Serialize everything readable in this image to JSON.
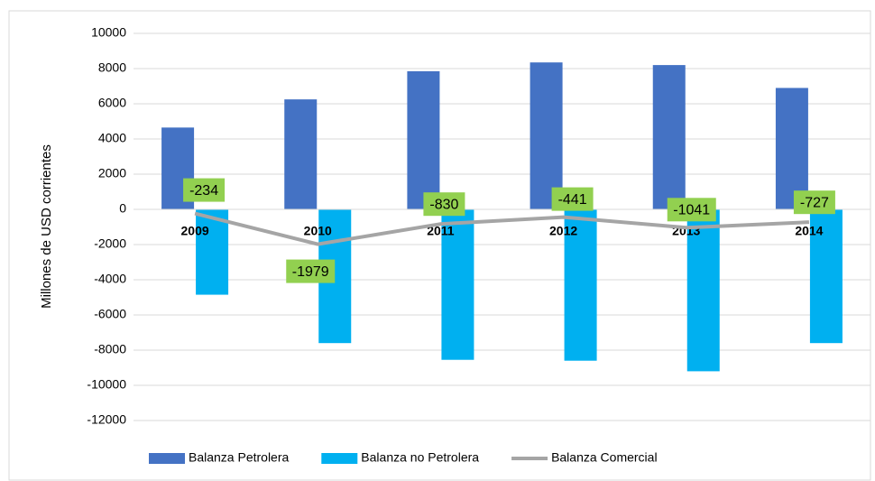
{
  "chart_data": {
    "type": "bar",
    "y_label": "Millones de USD corrientes",
    "categories": [
      "2009",
      "2010",
      "2011",
      "2012",
      "2013",
      "2014"
    ],
    "series": [
      {
        "name": "Balanza Petrolera",
        "color": "#4472c4",
        "type": "bar",
        "values": [
          4650,
          6250,
          7850,
          8350,
          8200,
          6900
        ]
      },
      {
        "name": "Balanza no Petrolera",
        "color": "#00b0f0",
        "type": "bar",
        "values": [
          -4850,
          -7600,
          -8550,
          -8600,
          -9200,
          -7600
        ]
      },
      {
        "name": "Balanza Comercial",
        "color": "#a5a5a5",
        "type": "line",
        "values": [
          -234,
          -1979,
          -830,
          -441,
          -1041,
          -727
        ]
      }
    ],
    "ylim": [
      -12000,
      10000
    ],
    "yticks": [
      -12000,
      -10000,
      -8000,
      -6000,
      -4000,
      -2000,
      0,
      2000,
      4000,
      6000,
      8000,
      10000
    ],
    "grid": true,
    "legend": "bottom",
    "label_color": "#92d050"
  }
}
